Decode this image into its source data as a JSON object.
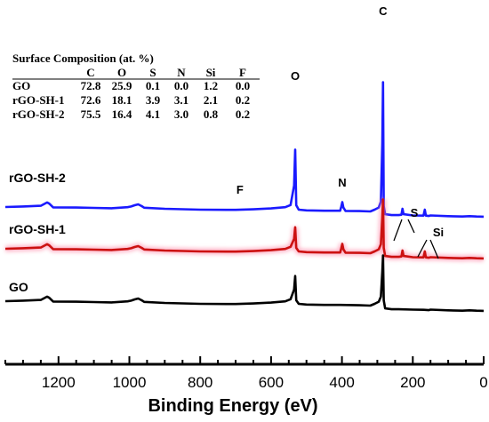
{
  "chart_data": {
    "type": "line",
    "title": "",
    "xlabel": "Binding Energy (eV)",
    "ylabel": "",
    "xlim": [
      1350,
      0
    ],
    "x_reversed": true,
    "x_ticks": [
      1200,
      1000,
      800,
      600,
      400,
      200,
      0
    ],
    "x_tick_labels": [
      "1200",
      "1000",
      "800",
      "600",
      "400",
      "200",
      "0"
    ],
    "grid": false,
    "series": [
      {
        "name": "rGO-SH-2",
        "color": "#1a1aff",
        "offset_level": 3,
        "points": [
          [
            1350,
            0.05
          ],
          [
            1300,
            0.08
          ],
          [
            1250,
            0.12
          ],
          [
            1232,
            0.3
          ],
          [
            1226,
            0.24
          ],
          [
            1215,
            0.03
          ],
          [
            1150,
            0.02
          ],
          [
            1100,
            0.0
          ],
          [
            1050,
            -0.02
          ],
          [
            1005,
            0.04
          ],
          [
            995,
            0.08
          ],
          [
            985,
            0.15
          ],
          [
            975,
            0.2
          ],
          [
            965,
            0.1
          ],
          [
            958,
            0.01
          ],
          [
            900,
            -0.05
          ],
          [
            800,
            -0.1
          ],
          [
            700,
            -0.11
          ],
          [
            650,
            -0.08
          ],
          [
            600,
            -0.03
          ],
          [
            560,
            0.04
          ],
          [
            545,
            0.16
          ],
          [
            535,
            1.25
          ],
          [
            532,
            3.25
          ],
          [
            529,
            0.15
          ],
          [
            522,
            -0.1
          ],
          [
            500,
            -0.14
          ],
          [
            450,
            -0.16
          ],
          [
            420,
            -0.16
          ],
          [
            405,
            -0.16
          ],
          [
            402,
            0.06
          ],
          [
            399,
            0.32
          ],
          [
            396,
            0.02
          ],
          [
            390,
            -0.17
          ],
          [
            350,
            -0.18
          ],
          [
            320,
            -0.2
          ],
          [
            308,
            -0.1
          ],
          [
            296,
            0.02
          ],
          [
            290,
            0.35
          ],
          [
            286,
            3.6
          ],
          [
            284,
            7.0
          ],
          [
            282,
            0.1
          ],
          [
            278,
            -0.35
          ],
          [
            260,
            -0.4
          ],
          [
            240,
            -0.4
          ],
          [
            232,
            -0.38
          ],
          [
            229,
            -0.05
          ],
          [
            226,
            -0.35
          ],
          [
            200,
            -0.42
          ],
          [
            170,
            -0.43
          ],
          [
            166,
            -0.1
          ],
          [
            163,
            -0.43
          ],
          [
            155,
            -0.45
          ],
          [
            150,
            -0.42
          ],
          [
            100,
            -0.46
          ],
          [
            60,
            -0.48
          ],
          [
            40,
            -0.46
          ],
          [
            20,
            -0.48
          ],
          [
            0,
            -0.49
          ]
        ]
      },
      {
        "name": "rGO-SH-1",
        "color": "#cc1111",
        "offset_level": 2,
        "points": [
          [
            1350,
            0.05
          ],
          [
            1300,
            0.08
          ],
          [
            1250,
            0.12
          ],
          [
            1232,
            0.3
          ],
          [
            1226,
            0.24
          ],
          [
            1215,
            0.03
          ],
          [
            1150,
            0.02
          ],
          [
            1100,
            0.0
          ],
          [
            1050,
            -0.02
          ],
          [
            1005,
            0.04
          ],
          [
            995,
            0.08
          ],
          [
            985,
            0.15
          ],
          [
            975,
            0.2
          ],
          [
            965,
            0.1
          ],
          [
            958,
            0.01
          ],
          [
            900,
            -0.05
          ],
          [
            800,
            -0.1
          ],
          [
            700,
            -0.11
          ],
          [
            650,
            -0.08
          ],
          [
            600,
            -0.03
          ],
          [
            560,
            0.04
          ],
          [
            545,
            0.16
          ],
          [
            535,
            0.6
          ],
          [
            532,
            1.25
          ],
          [
            529,
            0.1
          ],
          [
            522,
            -0.1
          ],
          [
            500,
            -0.14
          ],
          [
            450,
            -0.16
          ],
          [
            420,
            -0.16
          ],
          [
            405,
            -0.16
          ],
          [
            402,
            0.06
          ],
          [
            399,
            0.32
          ],
          [
            396,
            0.02
          ],
          [
            390,
            -0.17
          ],
          [
            350,
            -0.18
          ],
          [
            320,
            -0.2
          ],
          [
            308,
            -0.1
          ],
          [
            296,
            0.02
          ],
          [
            290,
            0.3
          ],
          [
            286,
            1.8
          ],
          [
            284,
            2.8
          ],
          [
            282,
            0.1
          ],
          [
            278,
            -0.35
          ],
          [
            260,
            -0.4
          ],
          [
            240,
            -0.4
          ],
          [
            232,
            -0.38
          ],
          [
            229,
            -0.05
          ],
          [
            226,
            -0.35
          ],
          [
            200,
            -0.42
          ],
          [
            170,
            -0.43
          ],
          [
            166,
            -0.1
          ],
          [
            163,
            -0.43
          ],
          [
            155,
            -0.45
          ],
          [
            150,
            -0.42
          ],
          [
            100,
            -0.46
          ],
          [
            60,
            -0.48
          ],
          [
            40,
            -0.46
          ],
          [
            20,
            -0.48
          ],
          [
            0,
            -0.49
          ]
        ]
      },
      {
        "name": "GO",
        "color": "#000000",
        "offset_level": 1,
        "points": [
          [
            1350,
            0.05
          ],
          [
            1300,
            0.08
          ],
          [
            1250,
            0.12
          ],
          [
            1232,
            0.3
          ],
          [
            1226,
            0.24
          ],
          [
            1215,
            0.03
          ],
          [
            1150,
            0.02
          ],
          [
            1100,
            0.0
          ],
          [
            1050,
            -0.02
          ],
          [
            1005,
            0.04
          ],
          [
            995,
            0.08
          ],
          [
            985,
            0.15
          ],
          [
            975,
            0.2
          ],
          [
            965,
            0.1
          ],
          [
            958,
            0.01
          ],
          [
            900,
            -0.05
          ],
          [
            800,
            -0.1
          ],
          [
            700,
            -0.11
          ],
          [
            650,
            -0.08
          ],
          [
            600,
            -0.03
          ],
          [
            560,
            0.04
          ],
          [
            545,
            0.16
          ],
          [
            535,
            0.7
          ],
          [
            532,
            1.45
          ],
          [
            529,
            0.1
          ],
          [
            522,
            -0.1
          ],
          [
            500,
            -0.14
          ],
          [
            450,
            -0.16
          ],
          [
            420,
            -0.16
          ],
          [
            405,
            -0.16
          ],
          [
            350,
            -0.18
          ],
          [
            320,
            -0.2
          ],
          [
            308,
            -0.1
          ],
          [
            296,
            0.02
          ],
          [
            290,
            0.3
          ],
          [
            286,
            1.7
          ],
          [
            284,
            2.6
          ],
          [
            282,
            0.1
          ],
          [
            278,
            -0.35
          ],
          [
            260,
            -0.4
          ],
          [
            240,
            -0.4
          ],
          [
            200,
            -0.42
          ],
          [
            170,
            -0.43
          ],
          [
            155,
            -0.45
          ],
          [
            150,
            -0.42
          ],
          [
            100,
            -0.46
          ],
          [
            60,
            -0.48
          ],
          [
            40,
            -0.46
          ],
          [
            20,
            -0.48
          ],
          [
            0,
            -0.49
          ]
        ]
      }
    ],
    "peak_labels": [
      {
        "text": "C",
        "x": 284
      },
      {
        "text": "O",
        "x": 532
      },
      {
        "text": "N",
        "x": 399
      },
      {
        "text": "F",
        "x": 688
      },
      {
        "text": "S",
        "x": 196
      },
      {
        "text": "Si",
        "x": 128
      }
    ],
    "inset_table": {
      "title": "Surface Composition (at. %)",
      "columns": [
        "C",
        "O",
        "S",
        "N",
        "Si",
        "F"
      ],
      "rows": [
        {
          "label": "GO",
          "values": [
            "72.8",
            "25.9",
            "0.1",
            "0.0",
            "1.2",
            "0.0"
          ]
        },
        {
          "label": "rGO-SH-1",
          "values": [
            "72.6",
            "18.1",
            "3.9",
            "3.1",
            "2.1",
            "0.2"
          ]
        },
        {
          "label": "rGO-SH-2",
          "values": [
            "75.5",
            "16.4",
            "4.1",
            "3.0",
            "0.8",
            "0.2"
          ]
        }
      ]
    }
  }
}
